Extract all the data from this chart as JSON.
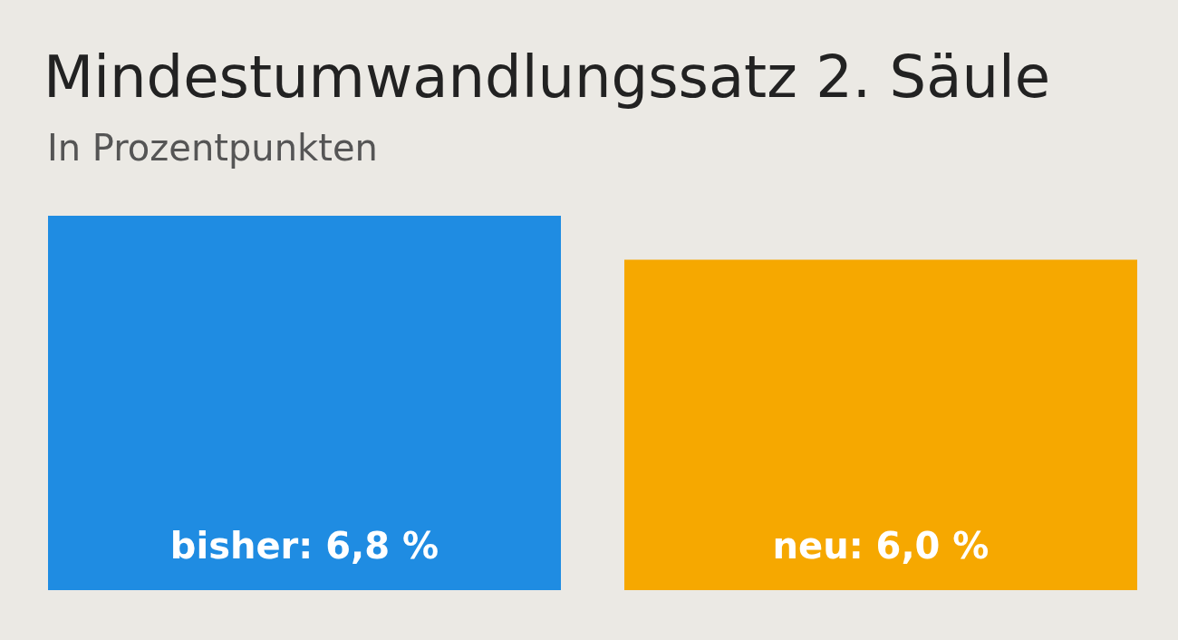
{
  "chart_data": {
    "type": "bar",
    "title": "Mindestumwandlungssatz 2. Säule",
    "subtitle": "In Prozentpunkten",
    "categories": [
      null,
      null
    ],
    "values": [
      6.8,
      6.0
    ],
    "value_labels": [
      "bisher: 6,8 %",
      "neu: 6,0 %"
    ],
    "colors": [
      "#1f8ce2",
      "#f6a800"
    ]
  }
}
